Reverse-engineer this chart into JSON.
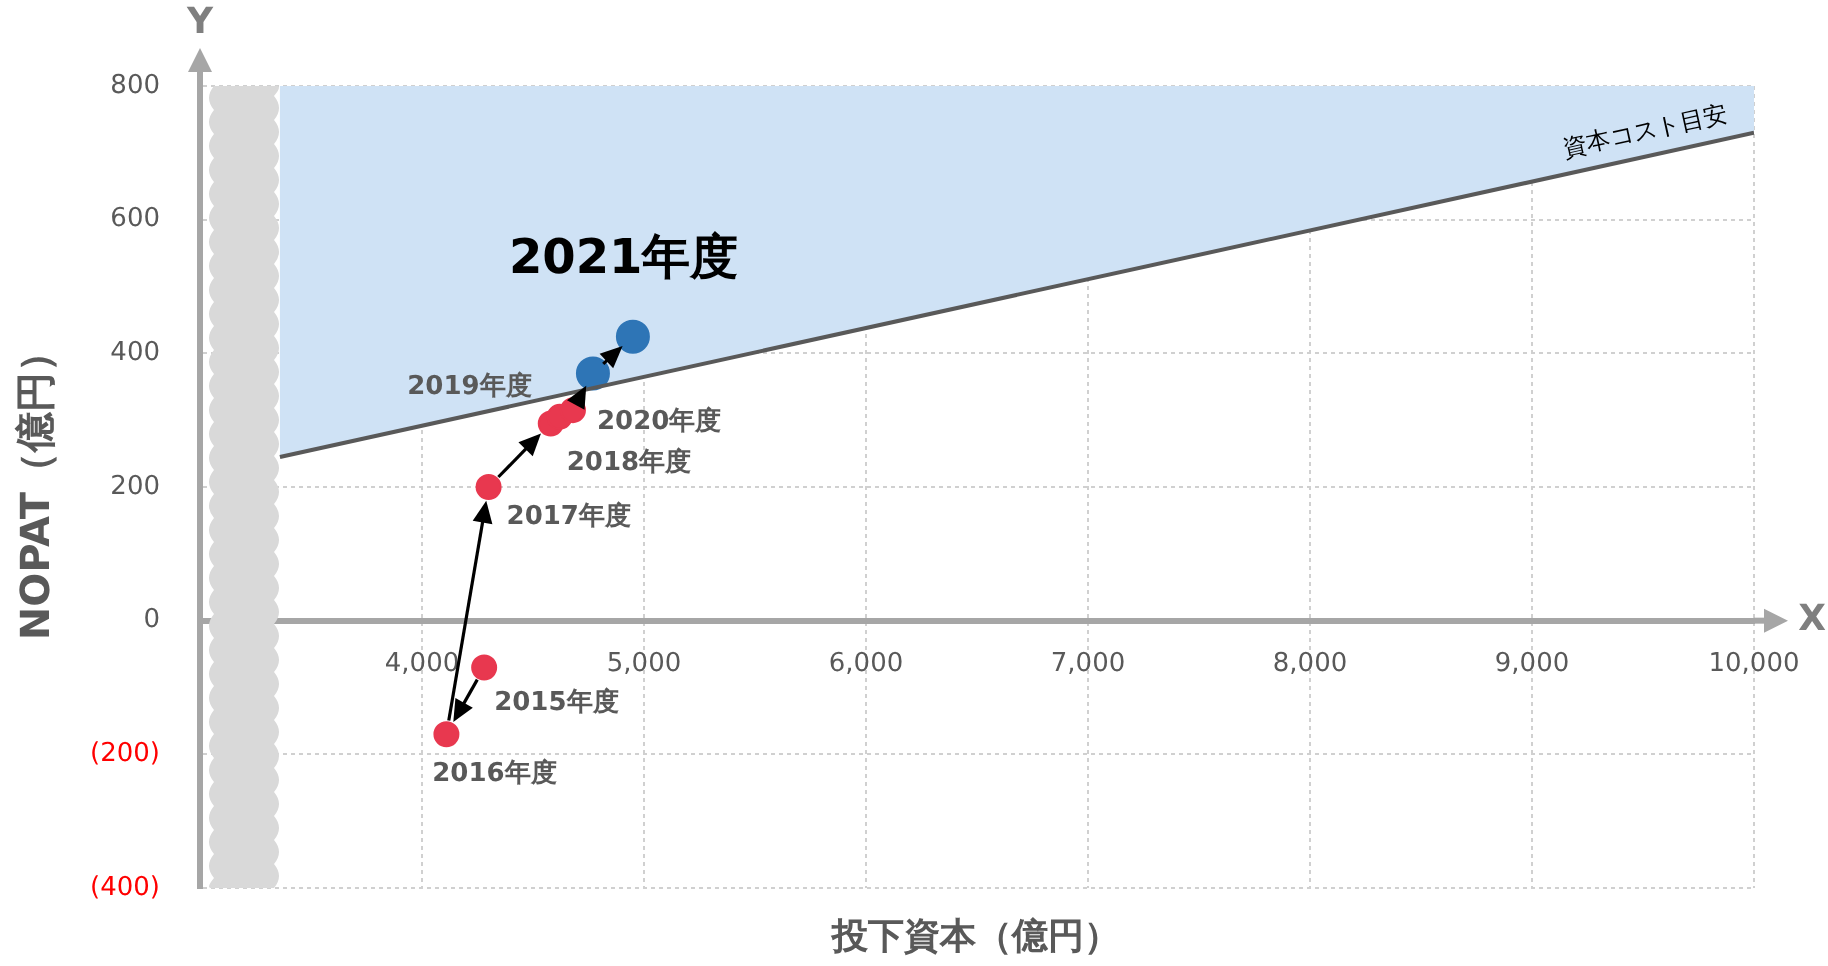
{
  "chart_data": {
    "type": "scatter",
    "xlabel": "投下資本（億円）",
    "ylabel": "NOPAT（億円）",
    "xlim": [
      3000,
      10000
    ],
    "ylim": [
      -400,
      800
    ],
    "xticks": [
      {
        "value": 4000,
        "label": "4,000"
      },
      {
        "value": 5000,
        "label": "5,000"
      },
      {
        "value": 6000,
        "label": "6,000"
      },
      {
        "value": 7000,
        "label": "7,000"
      },
      {
        "value": 8000,
        "label": "8,000"
      },
      {
        "value": 9000,
        "label": "9,000"
      },
      {
        "value": 10000,
        "label": "10,000"
      }
    ],
    "yticks": [
      {
        "value": -400,
        "label": "(400)"
      },
      {
        "value": -200,
        "label": "(200)"
      },
      0,
      200,
      400,
      600,
      800
    ],
    "grid": true,
    "legend": false,
    "series": [
      {
        "type": "area",
        "color": "#cfe2f5",
        "x": [
          3360,
          10000
        ],
        "values": [
          800,
          800
        ]
      },
      {
        "type": "line",
        "name": "資本コスト目安",
        "color": "#595959",
        "x": [
          3360,
          10000
        ],
        "values": [
          245,
          730
        ]
      },
      {
        "color": "#e8384f",
        "marker": "circle",
        "x": [
          4280,
          4110,
          4300,
          4580,
          4620,
          4680
        ],
        "values": [
          -70,
          -170,
          200,
          295,
          305,
          315
        ]
      },
      {
        "color": "#2e75b6",
        "marker": "circle",
        "x": [
          4770,
          4950
        ],
        "values": [
          370,
          425
        ]
      }
    ],
    "annotations": [
      "Y",
      "X",
      {
        "text": "2015年度",
        "x": 4280,
        "y": -70
      },
      {
        "text": "2016年度",
        "x": 4110,
        "y": -170
      },
      {
        "text": "2017年度",
        "x": 4300,
        "y": 200
      },
      {
        "text": "2018年度",
        "x": 4580,
        "y": 295
      },
      {
        "text": "2019年度",
        "x": 4620,
        "y": 305
      },
      {
        "text": "2020年度",
        "x": 4680,
        "y": 315
      },
      {
        "text": "2021年度",
        "x": 4950,
        "y": 425
      }
    ]
  }
}
